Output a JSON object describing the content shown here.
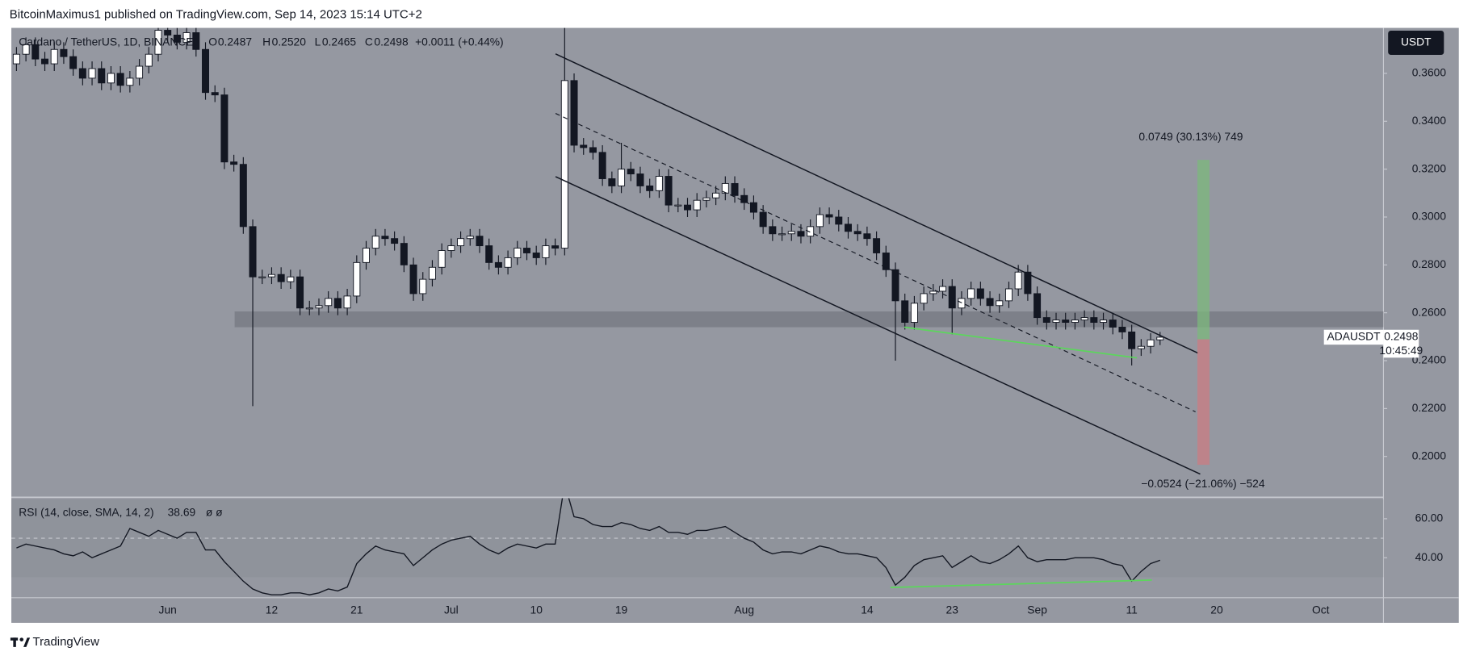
{
  "chart_data": [
    {
      "type": "candlestick",
      "attribution": "BitcoinMaximus1 published on TradingView.com, Sep 14, 2023 15:14 UTC+2",
      "title": "Cardano / TetherUS, 1D, BINANCE",
      "legend_labels": [
        "O",
        "H",
        "L",
        "C"
      ],
      "legend_values": [
        "0.2487",
        "0.2520",
        "0.2465",
        "0.2498"
      ],
      "change": "+0.0011 (+0.44%)",
      "currency": "USDT",
      "symbol": "ADAUSDT",
      "countdown": "10:45:49",
      "annotations": [
        "0.0749 (30.13%) 749",
        "−0.0524 (−21.06%) −524"
      ],
      "brand": "TradingView",
      "colors": {
        "up": "#ffffff",
        "down": "#131722",
        "wick": "#131722",
        "background": "#9598a1"
      },
      "grid": false,
      "categories": [
        null,
        null,
        null,
        null,
        null,
        null,
        null,
        null,
        null,
        null,
        null,
        null,
        null,
        null,
        null,
        null,
        "Jun",
        null,
        null,
        null,
        null,
        null,
        null,
        null,
        null,
        null,
        null,
        "12",
        null,
        null,
        null,
        null,
        null,
        null,
        null,
        null,
        "21",
        null,
        null,
        null,
        null,
        null,
        null,
        null,
        null,
        null,
        "Jul",
        null,
        null,
        null,
        null,
        null,
        null,
        null,
        null,
        "10",
        null,
        null,
        null,
        null,
        null,
        null,
        null,
        null,
        "19",
        null,
        null,
        null,
        null,
        null,
        null,
        null,
        null,
        null,
        null,
        null,
        null,
        "Aug",
        null,
        null,
        null,
        null,
        null,
        null,
        null,
        null,
        null,
        null,
        null,
        null,
        "14",
        null,
        null,
        null,
        null,
        null,
        null,
        null,
        null,
        "23",
        null,
        null,
        null,
        null,
        null,
        null,
        null,
        null,
        "Sep",
        null,
        null,
        null,
        null,
        null,
        null,
        null,
        null,
        null,
        "11",
        null,
        null,
        null,
        null,
        null,
        null,
        null,
        null,
        "20",
        null,
        null,
        null,
        null,
        null,
        null,
        null,
        null,
        null,
        null,
        "Oct",
        null,
        null,
        null,
        null,
        null,
        null
      ],
      "open": [
        0.364,
        0.368,
        0.372,
        0.366,
        0.364,
        0.37,
        0.367,
        0.362,
        0.358,
        0.362,
        0.356,
        0.36,
        0.355,
        0.358,
        0.363,
        0.368,
        0.378,
        0.376,
        0.373,
        0.377,
        0.37,
        0.352,
        0.351,
        0.323,
        0.322,
        0.296,
        0.275,
        0.275,
        0.276,
        0.273,
        0.275,
        0.262,
        0.262,
        0.263,
        0.266,
        0.262,
        0.267,
        0.281,
        0.287,
        0.292,
        0.291,
        0.289,
        0.28,
        0.268,
        0.274,
        0.279,
        0.286,
        0.288,
        0.291,
        0.292,
        0.288,
        0.281,
        0.279,
        0.283,
        0.287,
        0.285,
        0.283,
        0.288,
        0.287,
        0.357,
        0.33,
        0.329,
        0.327,
        0.316,
        0.313,
        0.32,
        0.318,
        0.313,
        0.311,
        0.317,
        0.305,
        0.305,
        0.303,
        0.307,
        0.308,
        0.31,
        0.314,
        0.309,
        0.306,
        0.302,
        0.296,
        0.293,
        0.293,
        0.294,
        0.292,
        0.296,
        0.301,
        0.3,
        0.297,
        0.294,
        0.293,
        0.291,
        0.285,
        0.278,
        0.265,
        0.256,
        0.264,
        0.268,
        0.269,
        0.271,
        0.262,
        0.266,
        0.27,
        0.266,
        0.263,
        0.265,
        0.27,
        0.277,
        0.268,
        0.258,
        0.256,
        0.257,
        0.256,
        0.257,
        0.258,
        0.256,
        0.257,
        0.254,
        0.252,
        0.245,
        0.246,
        0.2487,
        null,
        null,
        null,
        null,
        null,
        null,
        null,
        null,
        null,
        null,
        null,
        null,
        null,
        null,
        null,
        null,
        null,
        null,
        null,
        null,
        null,
        null,
        null
      ],
      "high": [
        0.371,
        0.375,
        0.375,
        0.369,
        0.373,
        0.373,
        0.37,
        0.365,
        0.365,
        0.365,
        0.363,
        0.363,
        0.361,
        0.366,
        0.371,
        0.381,
        0.381,
        0.379,
        0.38,
        0.38,
        0.373,
        0.355,
        0.354,
        0.326,
        0.325,
        0.299,
        0.278,
        0.279,
        0.279,
        0.278,
        0.278,
        0.265,
        0.266,
        0.269,
        0.269,
        0.27,
        0.284,
        0.29,
        0.295,
        0.295,
        0.294,
        0.292,
        0.283,
        0.277,
        0.282,
        0.289,
        0.291,
        0.294,
        0.295,
        0.295,
        0.291,
        0.284,
        0.286,
        0.29,
        0.29,
        0.288,
        0.291,
        0.291,
        0.385,
        0.36,
        0.333,
        0.332,
        0.33,
        0.319,
        0.331,
        0.323,
        0.321,
        0.316,
        0.32,
        0.32,
        0.308,
        0.308,
        0.31,
        0.311,
        0.313,
        0.317,
        0.317,
        0.312,
        0.309,
        0.305,
        0.299,
        0.296,
        0.297,
        0.297,
        0.299,
        0.304,
        0.304,
        0.303,
        0.3,
        0.297,
        0.296,
        0.294,
        0.288,
        0.281,
        0.268,
        0.267,
        0.271,
        0.272,
        0.274,
        0.274,
        0.269,
        0.273,
        0.273,
        0.269,
        0.268,
        0.273,
        0.28,
        0.28,
        0.271,
        0.261,
        0.26,
        0.26,
        0.26,
        0.261,
        0.261,
        0.26,
        0.26,
        0.257,
        0.255,
        0.249,
        0.2515,
        0.252,
        null,
        null,
        null,
        null,
        null,
        null,
        null,
        null,
        null,
        null,
        null,
        null,
        null,
        null,
        null,
        null,
        null,
        null,
        null,
        null,
        null,
        null,
        null
      ],
      "low": [
        0.361,
        0.365,
        0.363,
        0.361,
        0.361,
        0.364,
        0.359,
        0.355,
        0.355,
        0.353,
        0.353,
        0.352,
        0.352,
        0.355,
        0.36,
        0.365,
        0.373,
        0.37,
        0.37,
        0.367,
        0.349,
        0.348,
        0.32,
        0.319,
        0.293,
        0.221,
        0.272,
        0.272,
        0.27,
        0.27,
        0.259,
        0.259,
        0.259,
        0.26,
        0.259,
        0.259,
        0.264,
        0.278,
        0.284,
        0.288,
        0.286,
        0.277,
        0.265,
        0.265,
        0.271,
        0.276,
        0.283,
        0.285,
        0.288,
        0.285,
        0.278,
        0.276,
        0.276,
        0.28,
        0.282,
        0.28,
        0.28,
        0.284,
        0.284,
        0.327,
        0.326,
        0.324,
        0.313,
        0.31,
        0.31,
        0.315,
        0.31,
        0.308,
        0.308,
        0.302,
        0.302,
        0.3,
        0.3,
        0.304,
        0.305,
        0.307,
        0.306,
        0.303,
        0.299,
        0.293,
        0.29,
        0.29,
        0.29,
        0.289,
        0.289,
        0.293,
        0.297,
        0.294,
        0.291,
        0.29,
        0.288,
        0.282,
        0.275,
        0.24,
        0.253,
        0.253,
        0.261,
        0.265,
        0.266,
        0.251,
        0.259,
        0.263,
        0.263,
        0.26,
        0.26,
        0.262,
        0.267,
        0.265,
        0.255,
        0.253,
        0.253,
        0.253,
        0.253,
        0.254,
        0.253,
        0.253,
        0.251,
        0.249,
        0.238,
        0.242,
        0.243,
        0.2465,
        null,
        null,
        null,
        null,
        null,
        null,
        null,
        null,
        null,
        null,
        null,
        null,
        null,
        null,
        null,
        null,
        null,
        null,
        null,
        null,
        null,
        null,
        null
      ],
      "close": [
        0.368,
        0.372,
        0.366,
        0.364,
        0.37,
        0.367,
        0.362,
        0.358,
        0.362,
        0.356,
        0.36,
        0.355,
        0.358,
        0.363,
        0.368,
        0.378,
        0.376,
        0.373,
        0.377,
        0.37,
        0.352,
        0.351,
        0.323,
        0.322,
        0.296,
        0.275,
        0.275,
        0.276,
        0.273,
        0.275,
        0.262,
        0.262,
        0.263,
        0.266,
        0.262,
        0.267,
        0.281,
        0.287,
        0.292,
        0.291,
        0.289,
        0.28,
        0.268,
        0.274,
        0.279,
        0.286,
        0.288,
        0.291,
        0.292,
        0.288,
        0.281,
        0.279,
        0.283,
        0.287,
        0.285,
        0.283,
        0.288,
        0.287,
        0.357,
        0.33,
        0.329,
        0.327,
        0.316,
        0.313,
        0.32,
        0.318,
        0.313,
        0.311,
        0.317,
        0.305,
        0.305,
        0.303,
        0.307,
        0.308,
        0.31,
        0.314,
        0.309,
        0.306,
        0.302,
        0.296,
        0.293,
        0.293,
        0.294,
        0.292,
        0.296,
        0.301,
        0.3,
        0.297,
        0.294,
        0.293,
        0.291,
        0.285,
        0.278,
        0.265,
        0.256,
        0.264,
        0.268,
        0.269,
        0.271,
        0.262,
        0.266,
        0.27,
        0.266,
        0.263,
        0.265,
        0.27,
        0.277,
        0.268,
        0.258,
        0.256,
        0.257,
        0.256,
        0.257,
        0.258,
        0.256,
        0.257,
        0.254,
        0.252,
        0.245,
        0.246,
        0.2487,
        0.2498,
        null,
        null,
        null,
        null,
        null,
        null,
        null,
        null,
        null,
        null,
        null,
        null,
        null,
        null,
        null,
        null,
        null,
        null,
        null,
        null,
        null,
        null,
        null
      ],
      "ylim": [
        0.1837,
        0.379
      ],
      "yticks": [
        {
          "value": 0.2,
          "label": "0.2000"
        },
        {
          "value": 0.22,
          "label": "0.2200"
        },
        {
          "value": 0.24,
          "label": "0.2400"
        },
        {
          "value": 0.26,
          "label": "0.2600"
        },
        {
          "value": 0.28,
          "label": "0.2800"
        },
        {
          "value": 0.3,
          "label": "0.3000"
        },
        {
          "value": 0.32,
          "label": "0.3200"
        },
        {
          "value": 0.34,
          "label": "0.3400"
        },
        {
          "value": 0.36,
          "label": "0.3600"
        }
      ]
    },
    {
      "type": "line",
      "title": "RSI (14, close, SMA, 14, 2)",
      "legend_extra": "ø ø",
      "color": "#131722",
      "band": [
        30,
        70
      ],
      "values": [
        45,
        47,
        46,
        45,
        44,
        42,
        41,
        43,
        40,
        42,
        44,
        46,
        55,
        53,
        51,
        54,
        52,
        50,
        53,
        53,
        44,
        44,
        38,
        33,
        28,
        24,
        22,
        21,
        21,
        22,
        22,
        21,
        22,
        24,
        23,
        25,
        37,
        42,
        46,
        44,
        43,
        42,
        36,
        40,
        44,
        47,
        49,
        50,
        51,
        47,
        44,
        42,
        45,
        47,
        46,
        45,
        47,
        47,
        78,
        61,
        60,
        57,
        56,
        56,
        58,
        57,
        55,
        54,
        56,
        53,
        53,
        52,
        54,
        54,
        55,
        56,
        53,
        50,
        48,
        44,
        42,
        43,
        43,
        42,
        44,
        46,
        45,
        43,
        42,
        42,
        41,
        40,
        35,
        26,
        30,
        36,
        39,
        40,
        41,
        35,
        38,
        41,
        38,
        37,
        39,
        42,
        46,
        40,
        38,
        39,
        39,
        39,
        40,
        40,
        40,
        39,
        37,
        36,
        28,
        33,
        37,
        38.69,
        null,
        null,
        null,
        null,
        null,
        null,
        null,
        null,
        null,
        null,
        null,
        null,
        null,
        null,
        null,
        null,
        null,
        null,
        null,
        null,
        null,
        null,
        null
      ],
      "ylim": [
        19.5,
        70.5
      ],
      "yticks": [
        {
          "value": 40,
          "label": "40.00"
        },
        {
          "value": 60,
          "label": "60.00"
        }
      ]
    }
  ]
}
